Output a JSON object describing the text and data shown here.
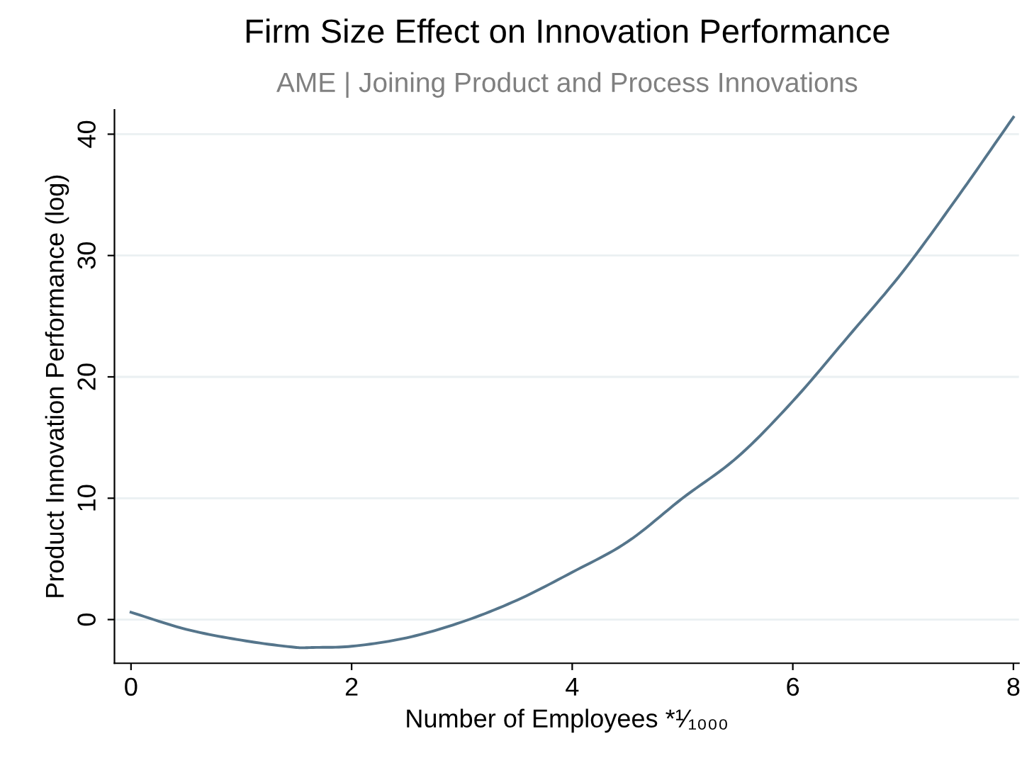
{
  "chart_data": {
    "type": "line",
    "title": "Firm Size Effect on Innovation Performance",
    "subtitle": "AME | Joining Product and Process Innovations",
    "xlabel": "Number of Employees *¹⁄₁₀₀₀",
    "ylabel": "Product Innovation Performance (log)",
    "x": [
      0,
      0.5,
      1,
      1.5,
      1.65,
      2,
      2.5,
      3,
      3.5,
      4,
      4.5,
      5,
      5.5,
      6,
      6.5,
      7,
      7.5,
      8
    ],
    "series": [
      {
        "color": "#55758b",
        "values": [
          0.6,
          -0.8,
          -1.7,
          -2.3,
          -2.3,
          -2.2,
          -1.5,
          -0.2,
          1.6,
          3.9,
          6.4,
          10,
          13.4,
          18,
          23.3,
          28.7,
          34.9,
          41.4
        ]
      }
    ],
    "xlim": [
      -0.15,
      8.05
    ],
    "ylim": [
      -3.6,
      42
    ],
    "xticks": [
      0,
      2,
      4,
      6,
      8
    ],
    "yticks": [
      0,
      10,
      20,
      30,
      40
    ],
    "grid": "y",
    "marker": "none",
    "line_style": "solid"
  }
}
